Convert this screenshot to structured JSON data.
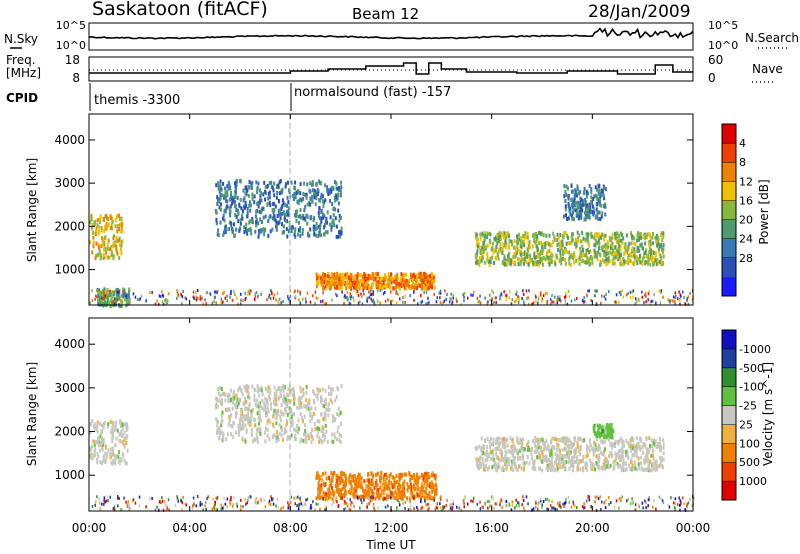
{
  "header": {
    "station": "Saskatoon (fitACF)",
    "beam": "Beam 12",
    "date": "28/Jan/2009"
  },
  "noise_panel": {
    "left_label": "N.Sky",
    "right_label": "N.Search",
    "left_ticks": [
      "10^5",
      "10^0"
    ],
    "right_ticks": [
      "10^5",
      "10^0"
    ]
  },
  "freq_panel": {
    "left_label_1": "Freq.",
    "left_label_2": "[MHz]",
    "right_label": "Nave",
    "left_ticks": [
      "18",
      "8"
    ],
    "right_ticks": [
      "60",
      "0"
    ]
  },
  "cpid_panel": {
    "label": "CPID",
    "modes": [
      {
        "name": "themis -3300",
        "start_hour": 0
      },
      {
        "name": "normalsound (fast) -157",
        "start_hour": 8
      }
    ]
  },
  "x_axis": {
    "label": "Time UT",
    "ticks": [
      "00:00",
      "04:00",
      "08:00",
      "12:00",
      "16:00",
      "20:00",
      "00:00"
    ]
  },
  "colors": {
    "power": [
      "#1a1aff",
      "#2a4fb8",
      "#3a7ab4",
      "#4f9a6e",
      "#86b83e",
      "#f0c000",
      "#f08000",
      "#f04000",
      "#e00000"
    ],
    "velocity": [
      "#e00000",
      "#f04000",
      "#f08000",
      "#f0b040",
      "#c8c8c0",
      "#60c040",
      "#2f8f2f",
      "#2040a0",
      "#1010c0"
    ]
  },
  "chart_data": [
    {
      "type": "heatmap",
      "title": "",
      "xlabel": "Time UT",
      "ylabel": "Slant Range [km]",
      "xlim": [
        0,
        24
      ],
      "ylim": [
        180,
        4600
      ],
      "yticks": [
        1000,
        2000,
        3000,
        4000
      ],
      "colorbar": {
        "label": "Power [dB]",
        "range": [
          0,
          32
        ],
        "ticks": [
          "4",
          "8",
          "12",
          "16",
          "20",
          "24",
          "28"
        ]
      },
      "echo_regions": [
        {
          "t": [
            0.0,
            1.3
          ],
          "r": [
            1300,
            2300
          ],
          "level": 5
        },
        {
          "t": [
            0.3,
            1.6
          ],
          "r": [
            200,
            600
          ],
          "level": 3
        },
        {
          "t": [
            5.0,
            10.0
          ],
          "r": [
            1800,
            3100
          ],
          "level": 2
        },
        {
          "t": [
            9.0,
            13.7
          ],
          "r": [
            600,
            950
          ],
          "level": 6
        },
        {
          "t": [
            15.3,
            22.8
          ],
          "r": [
            1150,
            1900
          ],
          "level": 4
        },
        {
          "t": [
            18.8,
            20.5
          ],
          "r": [
            2200,
            3000
          ],
          "level": 2
        }
      ]
    },
    {
      "type": "heatmap",
      "title": "",
      "xlabel": "Time UT",
      "ylabel": "Slant Range [km]",
      "xlim": [
        0,
        24
      ],
      "ylim": [
        180,
        4600
      ],
      "yticks": [
        1000,
        2000,
        3000,
        4000
      ],
      "colorbar": {
        "label": "Velocity [m s^-1]",
        "range": [
          -1000,
          1000
        ],
        "ticks": [
          "1000",
          "500",
          "100",
          "25",
          "-25",
          "-100",
          "-500",
          "-1000"
        ]
      },
      "echo_regions": [
        {
          "t": [
            0.0,
            1.5
          ],
          "r": [
            1300,
            2300
          ],
          "level": 4
        },
        {
          "t": [
            5.0,
            10.0
          ],
          "r": [
            1800,
            3100
          ],
          "level": 4
        },
        {
          "t": [
            9.0,
            13.8
          ],
          "r": [
            500,
            1100
          ],
          "level": 2
        },
        {
          "t": [
            15.3,
            22.8
          ],
          "r": [
            1150,
            1900
          ],
          "level": 4
        },
        {
          "t": [
            20.0,
            20.8
          ],
          "r": [
            1900,
            2200
          ],
          "level": 5
        }
      ]
    }
  ]
}
